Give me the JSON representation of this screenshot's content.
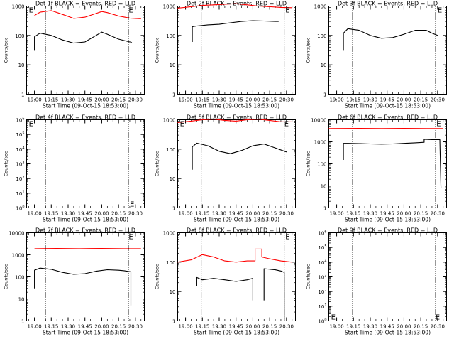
{
  "x_tick_labels": [
    "19:00",
    "19:15",
    "19:30",
    "19:45",
    "20:00",
    "20:15",
    "20:30"
  ],
  "colors": {
    "events": "#000000",
    "lld": "#ff0000",
    "axes": "#000000"
  },
  "chart_data": [
    {
      "type": "line",
      "title": "Det 1f BLACK = Events, RED = LLD",
      "ylabel": "Counts/sec",
      "xlabel": "Start Time (09-Oct-15 18:53:00)",
      "x_range_minutes": [
        -7,
        98
      ],
      "ylim": [
        1,
        1000
      ],
      "yscale": "log",
      "y_tick_labels": [
        "1",
        "10",
        "100",
        "1000"
      ],
      "y_tick_values": [
        1,
        10,
        100,
        1000
      ],
      "vlines_minutes": [
        10,
        84
      ],
      "markers": [
        {
          "text": "E",
          "x_minutes": -5,
          "y": 1000
        },
        {
          "text": "E",
          "x_minutes": 84,
          "y": 1000
        }
      ],
      "series": [
        {
          "color": "#ff0000",
          "x": [
            0,
            5,
            15,
            25,
            35,
            45,
            55,
            60,
            65,
            75,
            85,
            90,
            95
          ],
          "y": [
            480,
            620,
            700,
            520,
            380,
            420,
            560,
            650,
            600,
            460,
            390,
            380,
            370
          ]
        },
        {
          "color": "#000000",
          "x": [
            0,
            0,
            5,
            15,
            25,
            35,
            45,
            55,
            60,
            65,
            75,
            85,
            86,
            87
          ],
          "y": [
            30,
            90,
            120,
            100,
            70,
            55,
            60,
            100,
            130,
            110,
            75,
            60,
            60,
            55
          ]
        }
      ]
    },
    {
      "type": "line",
      "title": "Det 2f BLACK = Events, RED = LLD",
      "ylabel": "Counts/sec",
      "xlabel": "Start Time (09-Oct-15 18:53:00)",
      "x_range_minutes": [
        -7,
        98
      ],
      "ylim": [
        1,
        1000
      ],
      "yscale": "log",
      "y_tick_labels": [
        "1",
        "10",
        "100",
        "1000"
      ],
      "y_tick_values": [
        1,
        10,
        100,
        1000
      ],
      "vlines_minutes": [
        14,
        88
      ],
      "markers": [
        {
          "text": "E",
          "x_minutes": 89,
          "y": 1000
        }
      ],
      "series": [
        {
          "color": "#ff0000",
          "x": [
            -7,
            5,
            15,
            25,
            35,
            45,
            55,
            65,
            75,
            85,
            95
          ],
          "y": [
            850,
            950,
            1050,
            1100,
            1150,
            1200,
            1100,
            1000,
            950,
            900,
            880
          ]
        },
        {
          "color": "#000000",
          "x": [
            6,
            6,
            10,
            20,
            30,
            40,
            50,
            60,
            70,
            80,
            83
          ],
          "y": [
            60,
            200,
            210,
            230,
            240,
            270,
            300,
            320,
            310,
            300,
            300
          ]
        }
      ]
    },
    {
      "type": "line",
      "title": "Det 3f BLACK = Events, RED = LLD",
      "ylabel": "Counts/sec",
      "xlabel": "Start Time (09-Oct-15 18:53:00)",
      "x_range_minutes": [
        -7,
        98
      ],
      "ylim": [
        1,
        1000
      ],
      "yscale": "log",
      "y_tick_labels": [
        "1",
        "10",
        "100",
        "1000"
      ],
      "y_tick_values": [
        1,
        10,
        100,
        1000
      ],
      "vlines_minutes": [
        14,
        88
      ],
      "markers": [
        {
          "text": "E",
          "x_minutes": 90,
          "y": 1000
        }
      ],
      "series": [
        {
          "color": "#000000",
          "x": [
            6,
            6,
            10,
            20,
            30,
            40,
            50,
            60,
            70,
            80,
            85,
            90
          ],
          "y": [
            30,
            120,
            170,
            150,
            100,
            80,
            85,
            110,
            150,
            150,
            120,
            100
          ]
        }
      ]
    },
    {
      "type": "line",
      "title": "Det 4f BLACK = Events, RED = LLD",
      "ylabel": "Counts/sec",
      "xlabel": "Start Time (09-Oct-15 18:53:00)",
      "x_range_minutes": [
        -7,
        98
      ],
      "ylim": [
        1,
        1000000
      ],
      "yscale": "log",
      "y_tick_labels": [
        "10^0",
        "10^1",
        "10^2",
        "10^3",
        "10^4",
        "10^5",
        "10^6"
      ],
      "y_tick_values": [
        1,
        10,
        100,
        1000,
        10000,
        100000,
        1000000
      ],
      "vlines_minutes": [
        10,
        84
      ],
      "markers": [
        {
          "text": "E",
          "x_minutes": -5,
          "y": 1000000
        },
        {
          "text": "E",
          "x_minutes": 85,
          "y": 3
        }
      ],
      "series": []
    },
    {
      "type": "line",
      "title": "Det 5f BLACK = Events, RED = LLD",
      "ylabel": "Counts/sec",
      "xlabel": "Start Time (09-Oct-15 18:53:00)",
      "x_range_minutes": [
        -7,
        98
      ],
      "ylim": [
        1,
        1000
      ],
      "yscale": "log",
      "y_tick_labels": [
        "1",
        "10",
        "100",
        "1000"
      ],
      "y_tick_values": [
        1,
        10,
        100,
        1000
      ],
      "vlines_minutes": [
        14,
        88
      ],
      "markers": [
        {
          "text": "E",
          "x_minutes": -5,
          "y": 1000
        },
        {
          "text": "E",
          "x_minutes": 88,
          "y": 1000
        }
      ],
      "series": [
        {
          "color": "#ff0000",
          "x": [
            -7,
            5,
            15,
            25,
            35,
            45,
            55,
            65,
            75,
            85,
            95
          ],
          "y": [
            800,
            900,
            1000,
            1050,
            950,
            900,
            1000,
            1050,
            950,
            850,
            850
          ]
        },
        {
          "color": "#000000",
          "x": [
            6,
            6,
            10,
            20,
            30,
            40,
            50,
            60,
            70,
            80,
            90
          ],
          "y": [
            20,
            120,
            160,
            130,
            85,
            70,
            90,
            130,
            150,
            110,
            80
          ]
        }
      ]
    },
    {
      "type": "line",
      "title": "Det 6f BLACK = Events, RED = LLD",
      "ylabel": "Counts/sec",
      "xlabel": "Start Time (09-Oct-15 18:53:00)",
      "x_range_minutes": [
        -7,
        98
      ],
      "ylim": [
        1,
        10000
      ],
      "yscale": "log",
      "y_tick_labels": [
        "1",
        "10",
        "100",
        "1000",
        "10000"
      ],
      "y_tick_values": [
        1,
        10,
        100,
        1000,
        10000
      ],
      "vlines_minutes": [
        14,
        88
      ],
      "markers": [
        {
          "text": "E",
          "x_minutes": 89,
          "y": 10000
        }
      ],
      "series": [
        {
          "color": "#ff0000",
          "x": [
            -7,
            20,
            40,
            60,
            80,
            95
          ],
          "y": [
            4000,
            4100,
            4000,
            4100,
            4000,
            4000
          ]
        },
        {
          "color": "#000000",
          "x": [
            6,
            6,
            10,
            20,
            30,
            40,
            50,
            60,
            70,
            78,
            78,
            85,
            92,
            93
          ],
          "y": [
            150,
            850,
            850,
            830,
            800,
            780,
            800,
            850,
            900,
            950,
            1300,
            1250,
            1250,
            8
          ]
        }
      ]
    },
    {
      "type": "line",
      "title": "Det 7f BLACK = Events, RED = LLD",
      "ylabel": "Counts/sec",
      "xlabel": "Start Time (09-Oct-15 18:53:00)",
      "x_range_minutes": [
        -7,
        98
      ],
      "ylim": [
        1,
        10000
      ],
      "yscale": "log",
      "y_tick_labels": [
        "1",
        "10",
        "100",
        "1000",
        "10000"
      ],
      "y_tick_values": [
        1,
        10,
        100,
        1000,
        10000
      ],
      "vlines_minutes": [
        10,
        84
      ],
      "markers": [
        {
          "text": "E",
          "x_minutes": 84,
          "y": 10000
        }
      ],
      "series": [
        {
          "color": "#ff0000",
          "x": [
            0,
            20,
            40,
            60,
            80,
            95
          ],
          "y": [
            1900,
            1950,
            1900,
            1950,
            1900,
            1900
          ]
        },
        {
          "color": "#000000",
          "x": [
            0,
            0,
            5,
            15,
            25,
            35,
            45,
            55,
            65,
            75,
            80,
            86,
            86
          ],
          "y": [
            30,
            200,
            250,
            220,
            160,
            130,
            140,
            180,
            210,
            200,
            190,
            170,
            5
          ]
        }
      ]
    },
    {
      "type": "line",
      "title": "Det 8f BLACK = Events, RED = LLD",
      "ylabel": "Counts/sec",
      "xlabel": "Start Time (09-Oct-15 18:53:00)",
      "x_range_minutes": [
        -7,
        98
      ],
      "ylim": [
        1,
        1000
      ],
      "yscale": "log",
      "y_tick_labels": [
        "1",
        "10",
        "100",
        "1000"
      ],
      "y_tick_values": [
        1,
        10,
        100,
        1000
      ],
      "vlines_minutes": [
        14,
        88
      ],
      "markers": [
        {
          "text": "E",
          "x_minutes": 89,
          "y": 1000
        }
      ],
      "series": [
        {
          "color": "#ff0000",
          "x": [
            -7,
            5,
            15,
            25,
            35,
            45,
            55,
            62,
            62,
            68,
            68,
            75,
            85,
            95
          ],
          "y": [
            100,
            120,
            180,
            150,
            110,
            100,
            110,
            110,
            280,
            280,
            150,
            130,
            110,
            100
          ]
        },
        {
          "color": "#000000",
          "x": [
            10,
            10,
            15,
            25,
            35,
            45,
            55,
            60,
            60
          ],
          "y": [
            15,
            30,
            25,
            28,
            25,
            22,
            25,
            28,
            5
          ]
        },
        {
          "color": "#000000",
          "x": [
            70,
            70,
            80,
            85,
            88,
            88
          ],
          "y": [
            5,
            60,
            55,
            50,
            45,
            1
          ]
        }
      ]
    },
    {
      "type": "line",
      "title": "Det 9f BLACK = Events, RED = LLD",
      "ylabel": "Counts/sec",
      "xlabel": "Start Time (09-Oct-15 18:53:00)",
      "x_range_minutes": [
        -7,
        98
      ],
      "ylim": [
        1,
        1000000
      ],
      "yscale": "log",
      "y_tick_labels": [
        "10^0",
        "10^1",
        "10^2",
        "10^3",
        "10^4",
        "10^5",
        "10^6"
      ],
      "y_tick_values": [
        1,
        10,
        100,
        1000,
        10000,
        100000,
        1000000
      ],
      "vlines_minutes": [
        14,
        88
      ],
      "markers": [
        {
          "text": "E",
          "x_minutes": -5,
          "y": 3
        },
        {
          "text": "E",
          "x_minutes": 88,
          "y": 3
        }
      ],
      "series": []
    }
  ]
}
